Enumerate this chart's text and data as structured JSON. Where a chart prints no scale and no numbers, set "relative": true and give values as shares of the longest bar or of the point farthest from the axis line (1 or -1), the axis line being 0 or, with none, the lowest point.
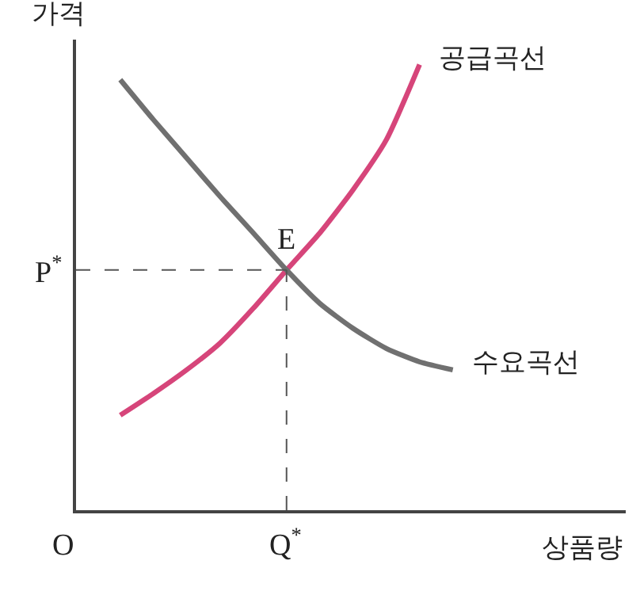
{
  "chart_data": {
    "type": "line",
    "relative": true,
    "xlabel": "상품량",
    "ylabel": "가격",
    "categories": [
      null,
      null,
      null,
      null,
      null,
      null,
      null,
      null,
      null,
      null,
      null
    ],
    "series": [
      {
        "name": "공급곡선",
        "color": "#d6457a",
        "values": [
          0.213,
          0.262,
          0.315,
          0.375,
          0.453,
          0.539,
          0.622,
          0.719,
          0.831,
          1,
          null
        ]
      },
      {
        "name": "수요곡선",
        "color": "#707070",
        "values": [
          0.966,
          0.876,
          0.79,
          0.704,
          0.622,
          0.539,
          0.464,
          0.408,
          0.363,
          0.333,
          0.315
        ]
      }
    ],
    "ref_lines": [
      {
        "axis": "y",
        "value": 0.539,
        "label": "P$^{*}$",
        "line_style": "dashed",
        "color": "#555555"
      }
    ],
    "annotations": [
      "E",
      "O",
      "Q$^{*}$"
    ],
    "legend": false,
    "marker": "none",
    "line_style": "solid"
  }
}
